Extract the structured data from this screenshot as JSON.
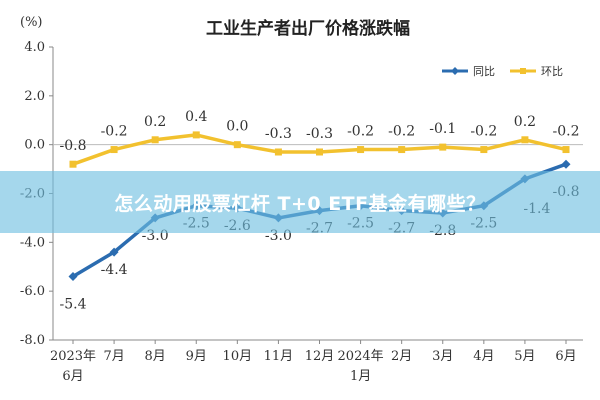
{
  "chart_data": {
    "type": "line",
    "title": "工业生产者出厂价格涨跌幅",
    "unit_label": "(%)",
    "ylim": [
      -8.0,
      4.0
    ],
    "yticks": [
      "4.0",
      "2.0",
      "0.0",
      "-2.0",
      "-4.0",
      "-6.0",
      "-8.0"
    ],
    "ytick_values": [
      4,
      2,
      0,
      -2,
      -4,
      -6,
      -8
    ],
    "categories": [
      [
        "2023年",
        "6月"
      ],
      [
        "7月"
      ],
      [
        "8月"
      ],
      [
        "9月"
      ],
      [
        "10月"
      ],
      [
        "11月"
      ],
      [
        "12月"
      ],
      [
        "2024年",
        "1月"
      ],
      [
        "2月"
      ],
      [
        "3月"
      ],
      [
        "4月"
      ],
      [
        "5月"
      ],
      [
        "6月"
      ]
    ],
    "legend_position": "top-right",
    "grid": false,
    "series": [
      {
        "name": "同比",
        "color": "#2b6cb0",
        "marker": "diamond",
        "values": [
          -5.4,
          -4.4,
          -3.0,
          -2.5,
          -2.6,
          -3.0,
          -2.7,
          -2.5,
          -2.7,
          -2.8,
          -2.5,
          -1.4,
          -0.8
        ],
        "labels": [
          "-5.4",
          "-4.4",
          "-3.0",
          "-2.5",
          "-2.6",
          "-3.0",
          "-2.7",
          "-2.5",
          "-2.7",
          "-2.8",
          "-2.5",
          "-1.4",
          "-0.8"
        ]
      },
      {
        "name": "环比",
        "color": "#f2c12e",
        "marker": "square",
        "values": [
          -0.8,
          -0.2,
          0.2,
          0.4,
          0.0,
          -0.3,
          -0.3,
          -0.2,
          -0.2,
          -0.1,
          -0.2,
          0.2,
          -0.2
        ],
        "labels": [
          "-0.8",
          "-0.2",
          "0.2",
          "0.4",
          "0.0",
          "-0.3",
          "-0.3",
          "-0.2",
          "-0.2",
          "-0.1",
          "-0.2",
          "0.2",
          "-0.2"
        ]
      }
    ]
  },
  "banner": {
    "text": "怎么动用股票杠杆 T+0 ETF基金有哪些？"
  }
}
